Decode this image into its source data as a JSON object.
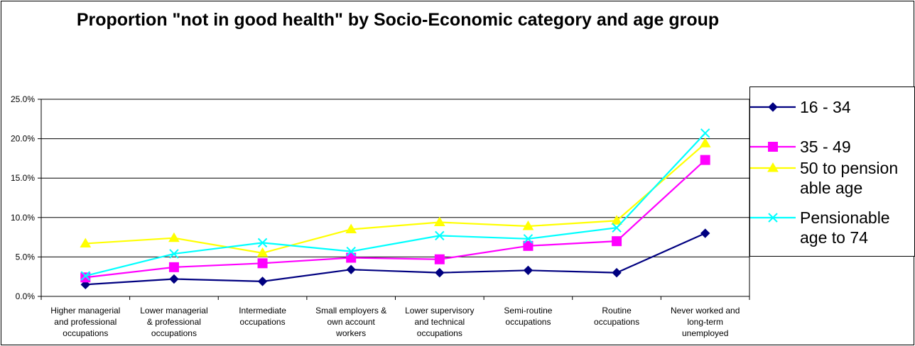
{
  "chart_data": {
    "type": "line",
    "title": "Proportion \"not in good health\" by Socio-Economic category and age group",
    "categories": [
      "Higher managerial and professional occupations",
      "Lower managerial & professional occupations",
      "Intermediate occupations",
      "Small employers & own account workers",
      "Lower supervisory and technical occupations",
      "Semi-routine occupations",
      "Routine occupations",
      "Never worked and long-term unemployed"
    ],
    "category_lines": [
      [
        "Higher managerial",
        "and professional",
        "occupations"
      ],
      [
        "Lower managerial",
        "& professional",
        "occupations"
      ],
      [
        "Intermediate",
        "occupations"
      ],
      [
        "Small employers &",
        "own account",
        "workers"
      ],
      [
        "Lower supervisory",
        "and technical",
        "occupations"
      ],
      [
        "Semi-routine",
        "occupations"
      ],
      [
        "Routine",
        "occupations"
      ],
      [
        "Never worked and",
        "long-term",
        "unemployed"
      ]
    ],
    "yticks": [
      "0.0%",
      "5.0%",
      "10.0%",
      "15.0%",
      "20.0%",
      "25.0%"
    ],
    "ylim": [
      0,
      25
    ],
    "grid": true,
    "legend_position": "right",
    "series": [
      {
        "name": "16 - 34",
        "color": "#000080",
        "marker": "diamond",
        "values": [
          1.5,
          2.2,
          1.9,
          3.4,
          3.0,
          3.3,
          3.0,
          8.0
        ]
      },
      {
        "name": "35 - 49",
        "color": "#ff00ff",
        "marker": "square",
        "values": [
          2.4,
          3.7,
          4.2,
          4.9,
          4.7,
          6.4,
          7.0,
          17.3
        ]
      },
      {
        "name": "50 to pension able age",
        "color": "#ffff00",
        "marker": "triangle",
        "values": [
          6.7,
          7.4,
          5.5,
          8.5,
          9.4,
          8.9,
          9.6,
          19.4
        ]
      },
      {
        "name": "Pensionable age to 74",
        "color": "#00ffff",
        "marker": "x",
        "values": [
          2.6,
          5.4,
          6.8,
          5.7,
          7.7,
          7.3,
          8.7,
          20.7
        ]
      }
    ],
    "legend_lines": [
      [
        "16 - 34"
      ],
      [
        "35 - 49"
      ],
      [
        "50 to pension",
        "able age"
      ],
      [
        "Pensionable",
        "age to 74"
      ]
    ]
  }
}
